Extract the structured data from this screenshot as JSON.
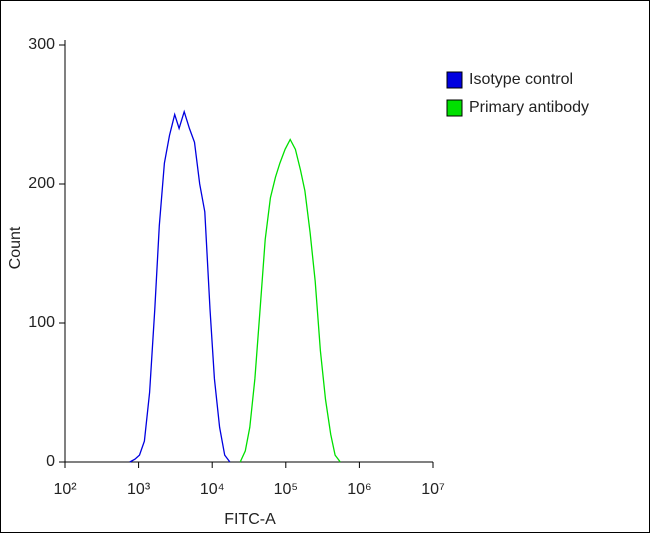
{
  "chart_data": {
    "type": "line",
    "xlabel": "FITC-A",
    "ylabel": "Count",
    "xscale": "log",
    "xlim": [
      100,
      10000000
    ],
    "xticks": [
      {
        "value": 100,
        "label": "10²"
      },
      {
        "value": 1000,
        "label": "10³"
      },
      {
        "value": 10000,
        "label": "10⁴"
      },
      {
        "value": 100000,
        "label": "10⁵"
      },
      {
        "value": 1000000,
        "label": "10⁶"
      },
      {
        "value": 10000000,
        "label": "10⁷"
      }
    ],
    "ylim": [
      0,
      300
    ],
    "yticks": [
      0,
      100,
      200,
      300
    ],
    "legend": "upper right",
    "series": [
      {
        "name": "Isotype control",
        "color": "#0000e0",
        "x": [
          760,
          890,
          1030,
          1200,
          1410,
          1660,
          1910,
          2240,
          2630,
          3090,
          3550,
          4170,
          4900,
          5750,
          6760,
          7940,
          9330,
          10700,
          12600,
          14800,
          17400
        ],
        "values": [
          0,
          2,
          5,
          15,
          50,
          110,
          170,
          215,
          235,
          250,
          240,
          252,
          240,
          230,
          200,
          180,
          110,
          60,
          25,
          5,
          0
        ]
      },
      {
        "name": "Primary antibody",
        "color": "#00e000",
        "x": [
          24000,
          28200,
          32400,
          38000,
          44700,
          52500,
          61700,
          72400,
          83200,
          97700,
          114800,
          134900,
          158500,
          182000,
          213800,
          251200,
          295100,
          346700,
          407400,
          467700,
          549500
        ],
        "values": [
          0,
          8,
          25,
          60,
          110,
          160,
          190,
          205,
          215,
          225,
          232,
          225,
          210,
          195,
          165,
          130,
          80,
          45,
          20,
          5,
          0
        ]
      }
    ]
  }
}
